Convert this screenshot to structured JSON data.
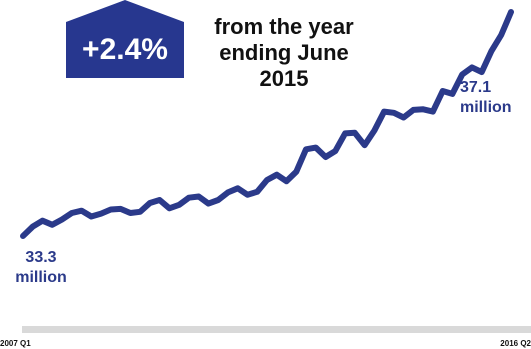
{
  "badge": {
    "text": "+2.4%",
    "color": "#27378f"
  },
  "headline": {
    "line1": "from the year",
    "line2": "ending June",
    "line3": "2015"
  },
  "start_label": {
    "value": "33.3",
    "unit": "million"
  },
  "end_label": {
    "value": "37.1",
    "unit": "million"
  },
  "colors": {
    "line": "#2b3a8a",
    "axis": "#d9d9d9"
  },
  "chart_data": {
    "type": "line",
    "title": "",
    "xlabel": "",
    "ylabel": "",
    "x_tick_labels": [
      "2007 Q1",
      "2016 Q2"
    ],
    "ylim": [
      32.8,
      37.2
    ],
    "grid": false,
    "series": [
      {
        "values": [
          33.3,
          33.46,
          33.56,
          33.49,
          33.58,
          33.69,
          33.73,
          33.63,
          33.68,
          33.75,
          33.76,
          33.69,
          33.71,
          33.86,
          33.91,
          33.77,
          33.83,
          33.95,
          33.97,
          33.85,
          33.91,
          34.04,
          34.11,
          34.0,
          34.05,
          34.25,
          34.34,
          34.23,
          34.39,
          34.77,
          34.8,
          34.64,
          34.74,
          35.04,
          35.05,
          34.84,
          35.09,
          35.41,
          35.39,
          35.31,
          35.44
        ]
      },
      {
        "values": [
          35.44,
          35.45,
          35.41,
          35.76,
          35.71,
          36.04,
          36.16,
          36.08,
          36.44,
          36.71,
          37.1
        ]
      }
    ]
  }
}
